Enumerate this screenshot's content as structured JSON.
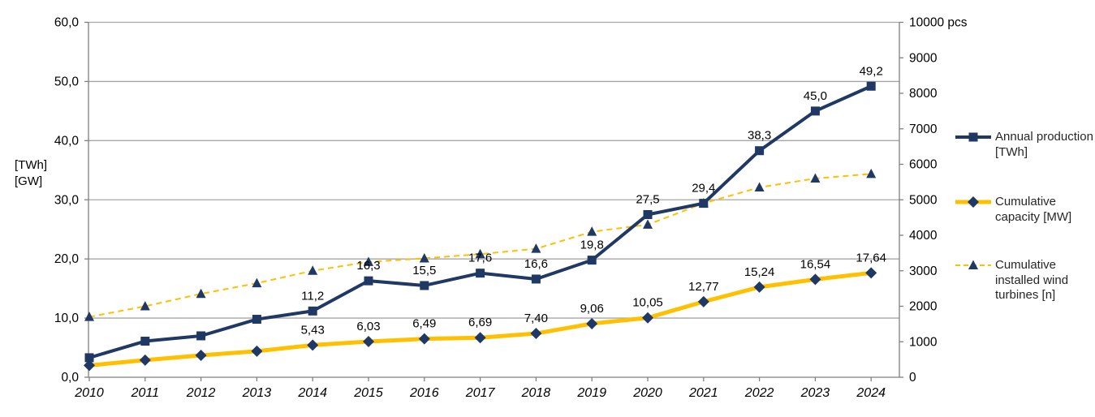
{
  "chart_data": {
    "type": "line",
    "title": "",
    "categories": [
      "2010",
      "2011",
      "2012",
      "2013",
      "2014",
      "2015",
      "2016",
      "2017",
      "2018",
      "2019",
      "2020",
      "2021",
      "2022",
      "2023",
      "2024"
    ],
    "left_axis": {
      "label_lines": [
        "[TWh]",
        "[GW]"
      ],
      "ticks": [
        "0,0",
        "10,0",
        "20,0",
        "30,0",
        "40,0",
        "50,0",
        "60,0"
      ],
      "min": 0,
      "max": 60,
      "tick_step": 10
    },
    "right_axis": {
      "unit": "pcs",
      "ticks": [
        "0",
        "1000",
        "2000",
        "3000",
        "4000",
        "5000",
        "6000",
        "7000",
        "8000",
        "9000",
        "10000 pcs"
      ],
      "min": 0,
      "max": 10000,
      "tick_step": 1000
    },
    "grid": true,
    "legend_position": "right",
    "series": [
      {
        "name": "annual-production",
        "legend_label": "Annual production [TWh]",
        "axis": "left",
        "color": "#1F3864",
        "marker": "square",
        "marker_color": "#1F3864",
        "line_style": "solid",
        "line_width": 4,
        "values": [
          3.3,
          6.1,
          7.0,
          9.8,
          11.2,
          16.3,
          15.5,
          17.6,
          16.6,
          19.8,
          27.5,
          29.4,
          38.3,
          45.0,
          49.2
        ],
        "labels": [
          "",
          "",
          "",
          "",
          "11,2",
          "16,3",
          "15,5",
          "17,6",
          "16,6",
          "19,8",
          "27,5",
          "29,4",
          "38,3",
          "45,0",
          "49,2"
        ]
      },
      {
        "name": "cumulative-capacity",
        "legend_label": "Cumulative capacity  [MW]",
        "axis": "left",
        "color": "#FFC000",
        "marker": "diamond",
        "marker_color": "#1F3864",
        "line_style": "solid",
        "line_width": 5,
        "values": [
          2.0,
          2.9,
          3.7,
          4.4,
          5.43,
          6.03,
          6.49,
          6.69,
          7.4,
          9.06,
          10.05,
          12.77,
          15.24,
          16.54,
          17.64
        ],
        "labels": [
          "",
          "",
          "",
          "",
          "5,43",
          "6,03",
          "6,49",
          "6,69",
          "7,40",
          "9,06",
          "10,05",
          "12,77",
          "15,24",
          "16,54",
          "17,64"
        ]
      },
      {
        "name": "cumulative-turbines",
        "legend_label": "Cumulative installed wind turbines [n]",
        "axis": "right",
        "color": "#FFC000",
        "marker": "triangle",
        "marker_color": "#1F3864",
        "line_style": "dashed",
        "line_width": 2,
        "values": [
          1700,
          2000,
          2350,
          2650,
          3000,
          3250,
          3350,
          3470,
          3620,
          4100,
          4300,
          4900,
          5350,
          5600,
          5730
        ],
        "labels": []
      }
    ],
    "colors": {
      "gridline": "#A6A6A6",
      "axis": "#808080",
      "tick_label_text": "#000000",
      "data_label_text": "#000000",
      "legend_text": "#262626",
      "background": "#FFFFFF"
    }
  }
}
